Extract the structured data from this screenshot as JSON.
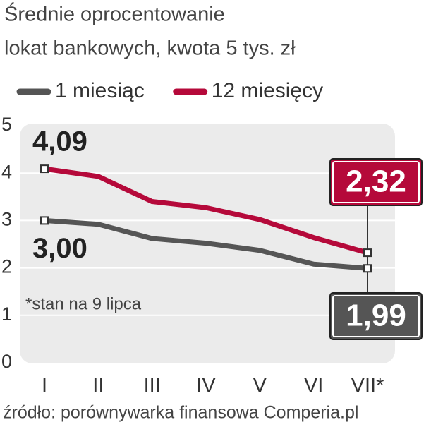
{
  "chart_data": {
    "type": "line",
    "title": [
      "Średnie oprocentowanie",
      "lokat bankowych, kwota 5 tys. zł"
    ],
    "categories": [
      "I",
      "II",
      "III",
      "IV",
      "V",
      "VI",
      "VII*"
    ],
    "series": [
      {
        "name": "1 miesiąc",
        "color": "#555555",
        "values": [
          3.0,
          2.92,
          2.62,
          2.52,
          2.37,
          2.08,
          1.99
        ],
        "value_labels": [
          "3,00",
          null,
          null,
          null,
          null,
          null,
          "1,99"
        ]
      },
      {
        "name": "12 miesięcy",
        "color": "#b5093a",
        "values": [
          4.09,
          3.93,
          3.4,
          3.27,
          3.02,
          2.64,
          2.32
        ],
        "value_labels": [
          "4,09",
          null,
          null,
          null,
          null,
          null,
          "2,32"
        ]
      }
    ],
    "ylim": [
      0,
      5
    ],
    "yticks": [
      0,
      1,
      2,
      3,
      4,
      5
    ],
    "grid": true,
    "annotation": "*stan na 9 lipca",
    "source": "źródło: porównywarka finansowa Comperia.pl"
  }
}
